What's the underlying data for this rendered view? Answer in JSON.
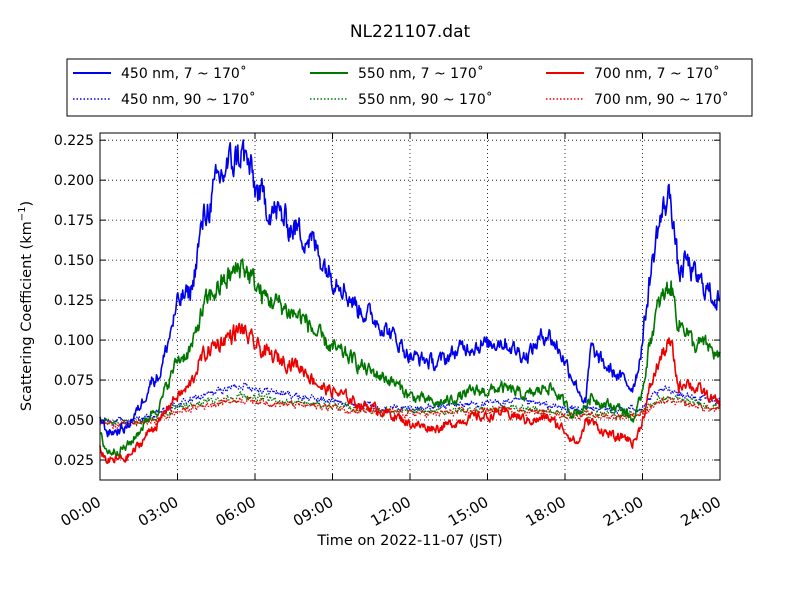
{
  "chart_data": {
    "type": "line",
    "title": "NL221107.dat",
    "xlabel": "Time on 2022-11-07 (JST)",
    "ylabel_prefix": "Scattering Coefficient (km",
    "ylabel_sup": "−1",
    "ylabel_suffix": ")",
    "xlim": [
      0,
      24
    ],
    "ylim": [
      0.0125,
      0.2295
    ],
    "x_ticks": [
      0,
      3,
      6,
      9,
      12,
      15,
      18,
      21,
      24
    ],
    "x_tick_labels": [
      "00:00",
      "03:00",
      "06:00",
      "09:00",
      "12:00",
      "15:00",
      "18:00",
      "21:00",
      "24:00"
    ],
    "y_ticks": [
      0.025,
      0.05,
      0.075,
      0.1,
      0.125,
      0.15,
      0.175,
      0.2,
      0.225
    ],
    "y_tick_labels": [
      "0.025",
      "0.050",
      "0.075",
      "0.100",
      "0.125",
      "0.150",
      "0.175",
      "0.200",
      "0.225"
    ],
    "grid": true,
    "legend_position": "top",
    "colors": {
      "450": "#0000ee",
      "550": "#007700",
      "700": "#ee0000"
    },
    "series": [
      {
        "name": "450 nm, 7 ~ 170˚",
        "color": "#0000ee",
        "style": "solid",
        "x": [
          0,
          0.3,
          0.6,
          1.0,
          1.3,
          1.6,
          2.0,
          2.3,
          2.5,
          2.8,
          3.0,
          3.2,
          3.4,
          3.6,
          3.8,
          4.0,
          4.3,
          4.6,
          4.9,
          5.2,
          5.5,
          5.8,
          6.0,
          6.3,
          6.6,
          7.0,
          7.3,
          7.6,
          8.0,
          8.3,
          8.6,
          9.0,
          9.3,
          9.6,
          10.0,
          10.5,
          11.0,
          11.5,
          12.0,
          12.5,
          13.0,
          13.5,
          14.0,
          14.5,
          15.0,
          15.5,
          16.0,
          16.5,
          17.0,
          17.3,
          17.6,
          17.9,
          18.2,
          18.5,
          18.8,
          19.0,
          19.3,
          19.6,
          20.0,
          20.3,
          20.6,
          20.8,
          21.0,
          21.3,
          21.6,
          21.9,
          22.1,
          22.4,
          22.7,
          23.0,
          23.3,
          23.6,
          24.0
        ],
        "y": [
          0.052,
          0.042,
          0.043,
          0.045,
          0.052,
          0.06,
          0.075,
          0.078,
          0.09,
          0.11,
          0.122,
          0.127,
          0.128,
          0.135,
          0.158,
          0.175,
          0.188,
          0.2,
          0.208,
          0.212,
          0.218,
          0.207,
          0.195,
          0.188,
          0.182,
          0.178,
          0.172,
          0.17,
          0.165,
          0.16,
          0.15,
          0.14,
          0.138,
          0.128,
          0.12,
          0.115,
          0.108,
          0.1,
          0.09,
          0.088,
          0.085,
          0.09,
          0.095,
          0.097,
          0.097,
          0.1,
          0.095,
          0.09,
          0.1,
          0.105,
          0.098,
          0.09,
          0.08,
          0.07,
          0.06,
          0.095,
          0.088,
          0.083,
          0.078,
          0.075,
          0.07,
          0.08,
          0.1,
          0.14,
          0.17,
          0.185,
          0.192,
          0.14,
          0.15,
          0.14,
          0.135,
          0.13,
          0.124
        ]
      },
      {
        "name": "550 nm, 7 ~ 170˚",
        "color": "#007700",
        "style": "solid",
        "x": [
          0,
          0.3,
          0.6,
          1.0,
          1.3,
          1.6,
          2.0,
          2.3,
          2.5,
          2.8,
          3.0,
          3.2,
          3.4,
          3.6,
          3.8,
          4.0,
          4.3,
          4.6,
          4.9,
          5.2,
          5.5,
          5.8,
          6.0,
          6.3,
          6.6,
          7.0,
          7.3,
          7.6,
          8.0,
          8.3,
          8.6,
          9.0,
          9.3,
          9.6,
          10.0,
          10.5,
          11.0,
          11.5,
          12.0,
          12.5,
          13.0,
          13.5,
          14.0,
          14.5,
          15.0,
          15.5,
          16.0,
          16.5,
          17.0,
          17.3,
          17.6,
          17.9,
          18.2,
          18.5,
          18.8,
          19.0,
          19.3,
          19.6,
          20.0,
          20.3,
          20.6,
          20.8,
          21.0,
          21.3,
          21.6,
          21.9,
          22.1,
          22.4,
          22.7,
          23.0,
          23.3,
          23.6,
          24.0
        ],
        "y": [
          0.04,
          0.03,
          0.031,
          0.033,
          0.038,
          0.045,
          0.055,
          0.058,
          0.068,
          0.08,
          0.088,
          0.09,
          0.092,
          0.097,
          0.11,
          0.12,
          0.128,
          0.133,
          0.138,
          0.142,
          0.148,
          0.14,
          0.135,
          0.128,
          0.125,
          0.122,
          0.118,
          0.116,
          0.112,
          0.105,
          0.1,
          0.095,
          0.092,
          0.09,
          0.085,
          0.08,
          0.077,
          0.072,
          0.065,
          0.063,
          0.06,
          0.062,
          0.065,
          0.068,
          0.068,
          0.07,
          0.068,
          0.065,
          0.068,
          0.072,
          0.068,
          0.062,
          0.055,
          0.055,
          0.058,
          0.065,
          0.062,
          0.06,
          0.058,
          0.056,
          0.05,
          0.055,
          0.07,
          0.1,
          0.12,
          0.13,
          0.135,
          0.11,
          0.108,
          0.095,
          0.098,
          0.095,
          0.088
        ]
      },
      {
        "name": "700 nm, 7 ~ 170˚",
        "color": "#ee0000",
        "style": "solid",
        "x": [
          0,
          0.3,
          0.6,
          1.0,
          1.3,
          1.6,
          2.0,
          2.3,
          2.5,
          2.8,
          3.0,
          3.2,
          3.4,
          3.6,
          3.8,
          4.0,
          4.3,
          4.6,
          4.9,
          5.2,
          5.5,
          5.8,
          6.0,
          6.3,
          6.6,
          7.0,
          7.3,
          7.6,
          8.0,
          8.3,
          8.6,
          9.0,
          9.3,
          9.6,
          10.0,
          10.5,
          11.0,
          11.5,
          12.0,
          12.5,
          13.0,
          13.5,
          14.0,
          14.5,
          15.0,
          15.5,
          16.0,
          16.5,
          17.0,
          17.3,
          17.6,
          17.9,
          18.2,
          18.5,
          18.8,
          19.0,
          19.3,
          19.6,
          20.0,
          20.3,
          20.6,
          20.8,
          21.0,
          21.3,
          21.6,
          21.9,
          22.1,
          22.4,
          22.7,
          23.0,
          23.3,
          23.6,
          24.0
        ],
        "y": [
          0.032,
          0.024,
          0.025,
          0.026,
          0.03,
          0.036,
          0.045,
          0.048,
          0.055,
          0.062,
          0.065,
          0.067,
          0.07,
          0.075,
          0.085,
          0.09,
          0.095,
          0.098,
          0.102,
          0.104,
          0.107,
          0.1,
          0.097,
          0.093,
          0.09,
          0.088,
          0.086,
          0.085,
          0.08,
          0.075,
          0.07,
          0.068,
          0.066,
          0.064,
          0.06,
          0.058,
          0.055,
          0.052,
          0.048,
          0.046,
          0.045,
          0.047,
          0.05,
          0.052,
          0.052,
          0.055,
          0.053,
          0.05,
          0.05,
          0.052,
          0.048,
          0.045,
          0.04,
          0.035,
          0.048,
          0.05,
          0.045,
          0.042,
          0.038,
          0.04,
          0.036,
          0.04,
          0.05,
          0.07,
          0.085,
          0.095,
          0.098,
          0.07,
          0.075,
          0.07,
          0.068,
          0.064,
          0.06
        ]
      },
      {
        "name": "450 nm, 90 ~ 170˚",
        "color": "#0000ee",
        "style": "dotted",
        "x": [
          0,
          1,
          2,
          3,
          4,
          5,
          5.5,
          6,
          7,
          8,
          9,
          10,
          11,
          12,
          13,
          14,
          15,
          16,
          17,
          18,
          19,
          20,
          21,
          21.5,
          22,
          22.5,
          23,
          24
        ],
        "y": [
          0.05,
          0.049,
          0.052,
          0.06,
          0.065,
          0.07,
          0.072,
          0.07,
          0.067,
          0.064,
          0.062,
          0.06,
          0.058,
          0.057,
          0.058,
          0.06,
          0.06,
          0.062,
          0.06,
          0.057,
          0.057,
          0.056,
          0.058,
          0.066,
          0.07,
          0.066,
          0.064,
          0.062
        ]
      },
      {
        "name": "550 nm, 90 ~ 170˚",
        "color": "#007700",
        "style": "dotted",
        "x": [
          0,
          1,
          2,
          3,
          4,
          5,
          5.5,
          6,
          7,
          8,
          9,
          10,
          11,
          12,
          13,
          14,
          15,
          16,
          17,
          18,
          19,
          20,
          21,
          21.5,
          22,
          22.5,
          23,
          24
        ],
        "y": [
          0.049,
          0.048,
          0.05,
          0.057,
          0.061,
          0.064,
          0.065,
          0.064,
          0.062,
          0.06,
          0.059,
          0.057,
          0.056,
          0.055,
          0.055,
          0.056,
          0.057,
          0.058,
          0.056,
          0.054,
          0.054,
          0.053,
          0.055,
          0.062,
          0.064,
          0.062,
          0.061,
          0.058
        ]
      },
      {
        "name": "700 nm, 90 ~ 170˚",
        "color": "#ee0000",
        "style": "dotted",
        "x": [
          0,
          1,
          2,
          3,
          4,
          5,
          5.5,
          6,
          7,
          8,
          9,
          10,
          11,
          12,
          13,
          14,
          15,
          16,
          17,
          18,
          19,
          20,
          21,
          21.5,
          22,
          22.5,
          23,
          24
        ],
        "y": [
          0.048,
          0.047,
          0.049,
          0.055,
          0.059,
          0.062,
          0.063,
          0.062,
          0.06,
          0.059,
          0.058,
          0.056,
          0.055,
          0.054,
          0.054,
          0.055,
          0.056,
          0.056,
          0.055,
          0.053,
          0.053,
          0.052,
          0.054,
          0.06,
          0.062,
          0.06,
          0.059,
          0.056
        ]
      }
    ],
    "legend": [
      {
        "label": "450 nm, 7 ~ 170˚",
        "color": "#0000ee",
        "style": "solid"
      },
      {
        "label": "550 nm, 7 ~ 170˚",
        "color": "#007700",
        "style": "solid"
      },
      {
        "label": "700 nm, 7 ~ 170˚",
        "color": "#ee0000",
        "style": "solid"
      },
      {
        "label": "450 nm, 90 ~ 170˚",
        "color": "#0000ee",
        "style": "dotted"
      },
      {
        "label": "550 nm, 90 ~ 170˚",
        "color": "#007700",
        "style": "dotted"
      },
      {
        "label": "700 nm, 90 ~ 170˚",
        "color": "#ee0000",
        "style": "dotted"
      }
    ]
  }
}
